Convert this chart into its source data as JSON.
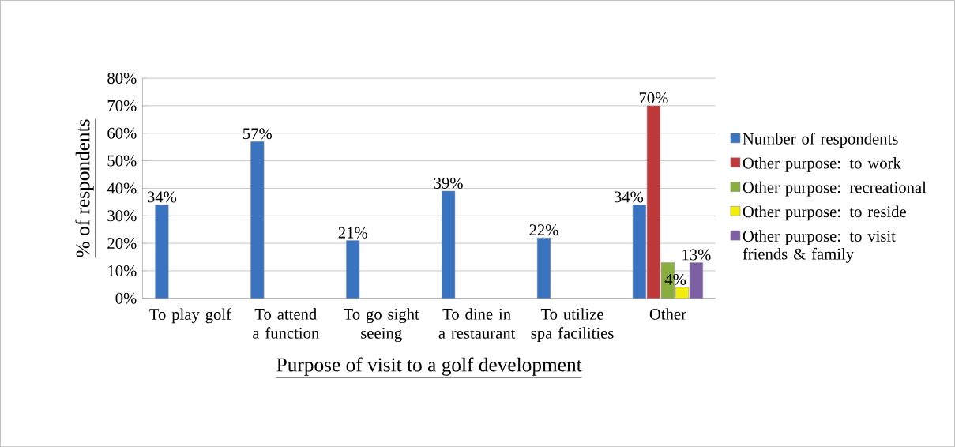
{
  "chart_data": {
    "type": "bar",
    "xlabel": "Purpose of visit to a golf development",
    "ylabel": "% of respondents",
    "categories": [
      "To play golf",
      "To attend a function",
      "To go sight seeing",
      "To dine in a restaurant",
      "To utilize spa facilities",
      "Other"
    ],
    "series": [
      {
        "name": "Number of respondents",
        "color": "#3a73c0",
        "values": [
          34,
          57,
          21,
          39,
          22,
          34
        ],
        "value_labels": [
          "34%",
          "57%",
          "21%",
          "39%",
          "22%",
          "34%"
        ]
      },
      {
        "name": "Other purpose: to work",
        "color": "#c0393a",
        "values": [
          null,
          null,
          null,
          null,
          null,
          70
        ],
        "value_labels": [
          null,
          null,
          null,
          null,
          null,
          "70%"
        ]
      },
      {
        "name": "Other purpose: recreational",
        "color": "#8aae3e",
        "values": [
          null,
          null,
          null,
          null,
          null,
          13
        ],
        "value_labels": [
          null,
          null,
          null,
          null,
          null,
          null
        ]
      },
      {
        "name": "Other purpose: to reside",
        "color": "#f2ee0a",
        "values": [
          null,
          null,
          null,
          null,
          null,
          4
        ],
        "value_labels": [
          null,
          null,
          null,
          null,
          null,
          "4%"
        ]
      },
      {
        "name": "Other purpose: to visit friends & family",
        "color": "#7d5fa3",
        "values": [
          null,
          null,
          null,
          null,
          null,
          13
        ],
        "value_labels": [
          null,
          null,
          null,
          null,
          null,
          "13%"
        ]
      }
    ],
    "ylim": [
      0,
      80
    ],
    "yticks": [
      {
        "value": 0,
        "label": "0%"
      },
      {
        "value": 10,
        "label": "10%"
      },
      {
        "value": 20,
        "label": "20%"
      },
      {
        "value": 30,
        "label": "30%"
      },
      {
        "value": 40,
        "label": "40%"
      },
      {
        "value": 50,
        "label": "50%"
      },
      {
        "value": 60,
        "label": "60%"
      },
      {
        "value": 70,
        "label": "70%"
      },
      {
        "value": 80,
        "label": "80%"
      }
    ],
    "grid": "y",
    "legend": "right"
  }
}
